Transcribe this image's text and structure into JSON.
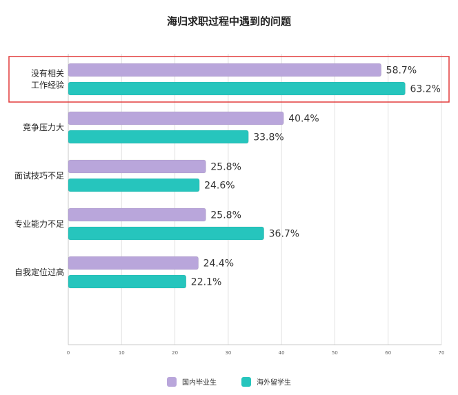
{
  "chart_data": {
    "type": "bar",
    "orientation": "horizontal",
    "title": "海归求职过程中遇到的问题",
    "categories": [
      [
        "没有相关",
        "工作经验"
      ],
      [
        "竞争压力大"
      ],
      [
        "面试技巧不足"
      ],
      [
        "专业能力不足"
      ],
      [
        "自我定位过高"
      ]
    ],
    "series": [
      {
        "name": "国内毕业生",
        "color": "#b9a6db",
        "values": [
          58.7,
          40.4,
          25.8,
          25.8,
          24.4
        ],
        "labels": [
          "58.7%",
          "40.4%",
          "25.8%",
          "25.8%",
          "24.4%"
        ]
      },
      {
        "name": "海外留学生",
        "color": "#26c5bd",
        "values": [
          63.2,
          33.8,
          24.6,
          36.7,
          22.1
        ],
        "labels": [
          "63.2%",
          "33.8%",
          "24.6%",
          "36.7%",
          "22.1%"
        ]
      }
    ],
    "xlim": [
      0,
      70
    ],
    "xticks": [
      0,
      10,
      20,
      30,
      40,
      50,
      60,
      70
    ],
    "xlabel": "",
    "ylabel": "",
    "grid": true,
    "legend_position": "bottom",
    "highlight_category_index": 0,
    "highlight_color": "#e23b3b"
  }
}
